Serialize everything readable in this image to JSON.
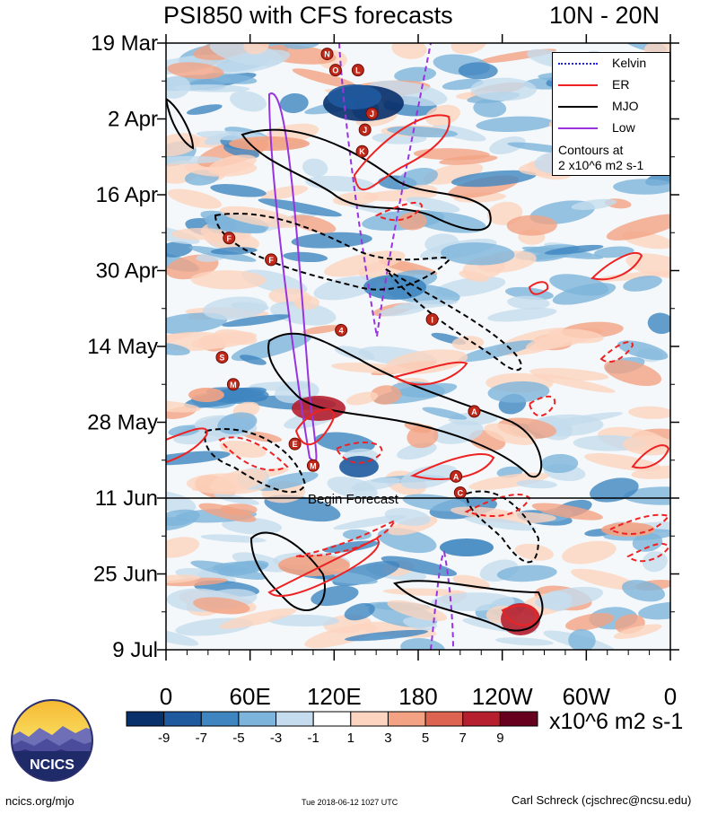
{
  "chart_data": {
    "type": "heatmap",
    "title": "PSI850 with CFS forecasts",
    "region": "10N - 20N",
    "y_ticks": [
      "19 Mar",
      "2 Apr",
      "16 Apr",
      "30 Apr",
      "14 May",
      "28 May",
      "11 Jun",
      "25 Jun",
      "9 Jul"
    ],
    "x_ticks": [
      "0",
      "60E",
      "120E",
      "180",
      "120W",
      "60W",
      "0"
    ],
    "xlim": [
      0,
      360
    ],
    "ylim": [
      "19 Mar",
      "9 Jul"
    ],
    "forecast_start": "11 Jun",
    "forecast_label": "Begin Forecast",
    "legend": {
      "position": "top-right",
      "entries": [
        {
          "name": "Kelvin",
          "color": "#2222ee"
        },
        {
          "name": "ER",
          "color": "#ee2222"
        },
        {
          "name": "MJO",
          "color": "#000000"
        },
        {
          "name": "Low",
          "color": "#9933dd"
        }
      ],
      "contour_note_line1": "Contours at",
      "contour_note_line2": "2 x10^6 m2 s-1"
    },
    "colorbar": {
      "labels": [
        "-9",
        "-7",
        "-5",
        "-3",
        "-1",
        "1",
        "3",
        "5",
        "7",
        "9"
      ],
      "colors": [
        "#08306b",
        "#1f5a9e",
        "#3f86c0",
        "#7db4db",
        "#c4dcee",
        "#ffffff",
        "#fdd4bf",
        "#f3a383",
        "#dc6450",
        "#b51f2e",
        "#67001f"
      ],
      "units": "x10^6 m2 s-1"
    },
    "storms": [
      {
        "letter": "N",
        "lon": 115,
        "date": "21 Mar"
      },
      {
        "letter": "O",
        "lon": 121,
        "date": "24 Mar"
      },
      {
        "letter": "L",
        "lon": 137,
        "date": "24 Mar"
      },
      {
        "letter": "J",
        "lon": 147,
        "date": "1 Apr"
      },
      {
        "letter": "J",
        "lon": 142,
        "date": "4 Apr"
      },
      {
        "letter": "K",
        "lon": 140,
        "date": "8 Apr"
      },
      {
        "letter": "F",
        "lon": 45,
        "date": "24 Apr"
      },
      {
        "letter": "F",
        "lon": 75,
        "date": "28 Apr"
      },
      {
        "letter": "4",
        "lon": 125,
        "date": "11 May"
      },
      {
        "letter": "I",
        "lon": 190,
        "date": "9 May"
      },
      {
        "letter": "S",
        "lon": 40,
        "date": "16 May"
      },
      {
        "letter": "M",
        "lon": 48,
        "date": "21 May"
      },
      {
        "letter": "A",
        "lon": 220,
        "date": "26 May"
      },
      {
        "letter": "E",
        "lon": 92,
        "date": "1 Jun"
      },
      {
        "letter": "M",
        "lon": 105,
        "date": "5 Jun"
      },
      {
        "letter": "A",
        "lon": 207,
        "date": "7 Jun"
      },
      {
        "letter": "C",
        "lon": 210,
        "date": "10 Jun"
      }
    ]
  },
  "footer": {
    "logo_text": "NCICS",
    "site": "ncics.org/mjo",
    "timestamp": "Tue 2018-06-12 1027 UTC",
    "author": "Carl Schreck (cjschrec@ncsu.edu)"
  }
}
